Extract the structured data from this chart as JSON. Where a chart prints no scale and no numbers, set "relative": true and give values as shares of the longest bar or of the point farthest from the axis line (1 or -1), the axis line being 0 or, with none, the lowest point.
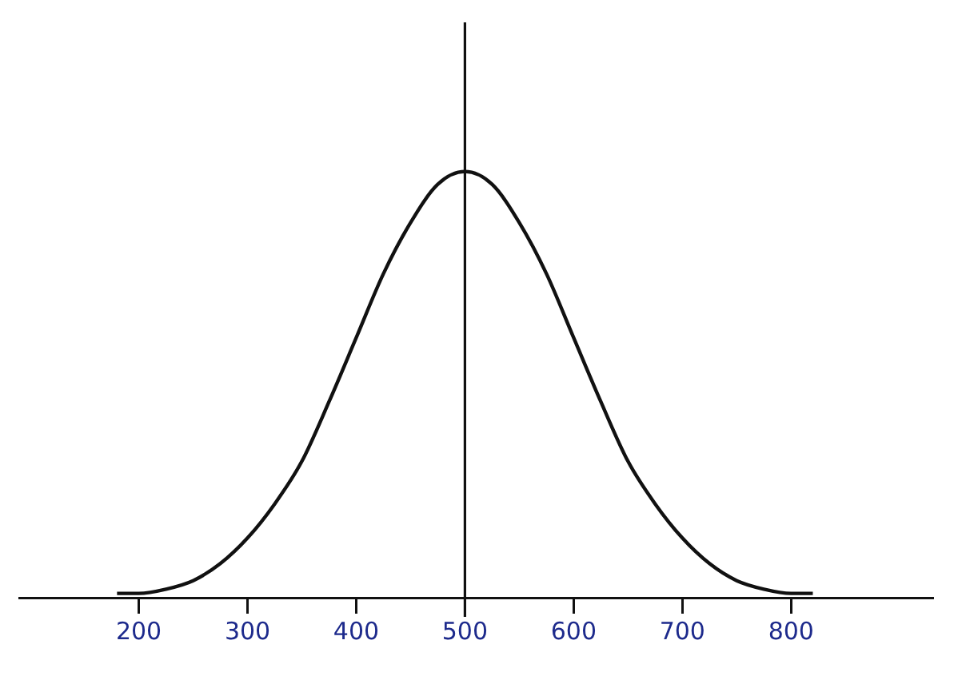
{
  "chart_data": {
    "type": "line",
    "relative": true,
    "x": [
      180,
      200,
      225,
      250,
      275,
      300,
      325,
      350,
      375,
      400,
      425,
      450,
      475,
      500,
      525,
      550,
      575,
      600,
      625,
      650,
      675,
      700,
      725,
      750,
      775,
      800,
      820
    ],
    "series": [
      {
        "color": "#111111",
        "values": [
          0.01,
          0.01,
          0.02,
          0.04,
          0.08,
          0.14,
          0.22,
          0.32,
          0.46,
          0.61,
          0.76,
          0.88,
          0.97,
          1,
          0.97,
          0.88,
          0.76,
          0.61,
          0.46,
          0.32,
          0.22,
          0.14,
          0.08,
          0.04,
          0.02,
          0.01,
          0.01
        ]
      }
    ],
    "xlim": [
      90,
      930
    ],
    "xticks": [
      200,
      300,
      400,
      500,
      600,
      700,
      800
    ],
    "ref_lines": [
      {
        "axis": "x",
        "value": 500,
        "color": "#111111"
      }
    ],
    "tick_labels": "x",
    "grid": false,
    "legend": false,
    "marker": "none",
    "line_style": "solid"
  }
}
